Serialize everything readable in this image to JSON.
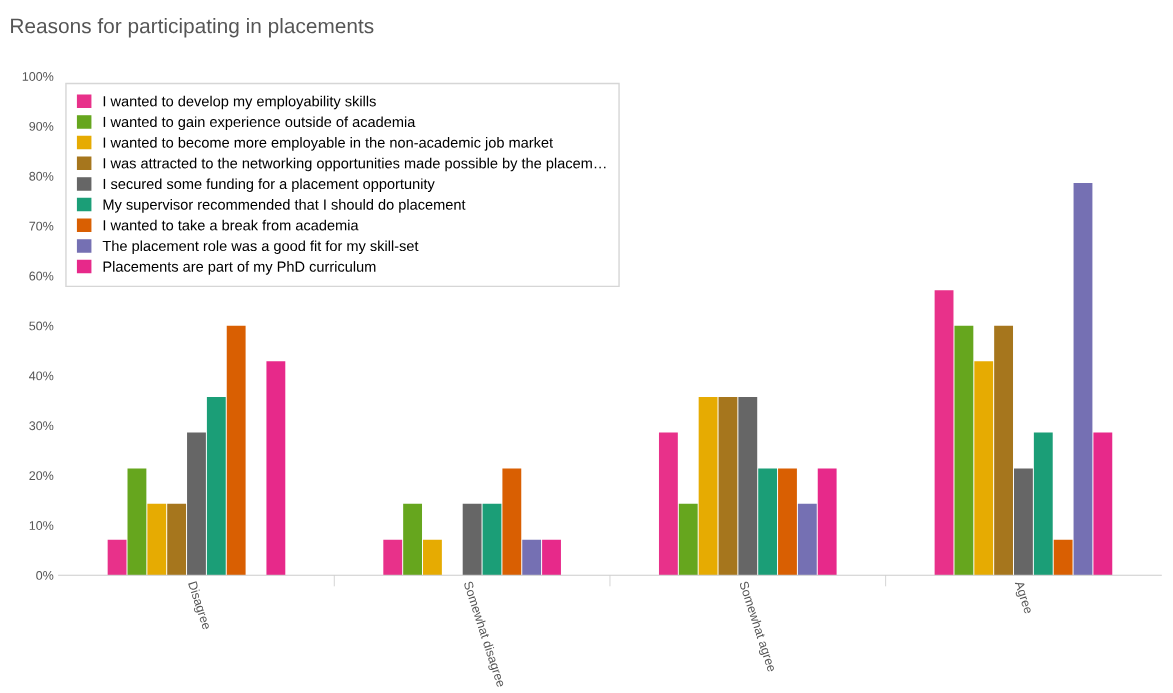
{
  "chart_data": {
    "type": "bar",
    "title": "Reasons for participating in placements",
    "categories": [
      "Disagree",
      "Somewhat disagree",
      "Somewhat agree",
      "Agree"
    ],
    "series": [
      {
        "name": "I wanted to develop my employability skills",
        "color": "#e8318a",
        "values": [
          7.1,
          7.1,
          28.6,
          57.1
        ]
      },
      {
        "name": "I wanted to gain experience outside of academia",
        "color": "#66a61e",
        "values": [
          21.4,
          14.3,
          14.3,
          50
        ]
      },
      {
        "name": "I wanted to become more employable in the non-academic job market",
        "color": "#e6ab02",
        "values": [
          14.3,
          7.1,
          35.7,
          42.9
        ]
      },
      {
        "name": "I was attracted to the networking opportunities made possible by the placem…",
        "color": "#a6761d",
        "values": [
          14.3,
          0,
          35.7,
          50
        ]
      },
      {
        "name": "I secured some funding for a placement opportunity",
        "color": "#666666",
        "values": [
          28.6,
          14.3,
          35.7,
          21.4
        ]
      },
      {
        "name": "My supervisor recommended that I should do placement",
        "color": "#1b9e77",
        "values": [
          35.7,
          14.3,
          21.4,
          28.6
        ]
      },
      {
        "name": "I wanted to take a break from academia",
        "color": "#d95f02",
        "values": [
          50,
          21.4,
          21.4,
          7.1
        ]
      },
      {
        "name": "The placement role was a good fit for my skill-set",
        "color": "#7570b3",
        "values": [
          0,
          7.1,
          14.3,
          78.6
        ]
      },
      {
        "name": "Placements are part of my PhD curriculum",
        "color": "#e7298a",
        "values": [
          42.9,
          7.1,
          21.4,
          28.6
        ]
      }
    ],
    "ylim": [
      0,
      100
    ],
    "yticks": [
      {
        "value": 0,
        "label": "0%"
      },
      {
        "value": 10,
        "label": "10%"
      },
      {
        "value": 20,
        "label": "20%"
      },
      {
        "value": 30,
        "label": "30%"
      },
      {
        "value": 40,
        "label": "40%"
      },
      {
        "value": 50,
        "label": "50%"
      },
      {
        "value": 60,
        "label": "60%"
      },
      {
        "value": 70,
        "label": "70%"
      },
      {
        "value": 80,
        "label": "80%"
      },
      {
        "value": 90,
        "label": "90%"
      },
      {
        "value": 100,
        "label": "100%"
      }
    ],
    "grid": false,
    "legend": "top left"
  }
}
